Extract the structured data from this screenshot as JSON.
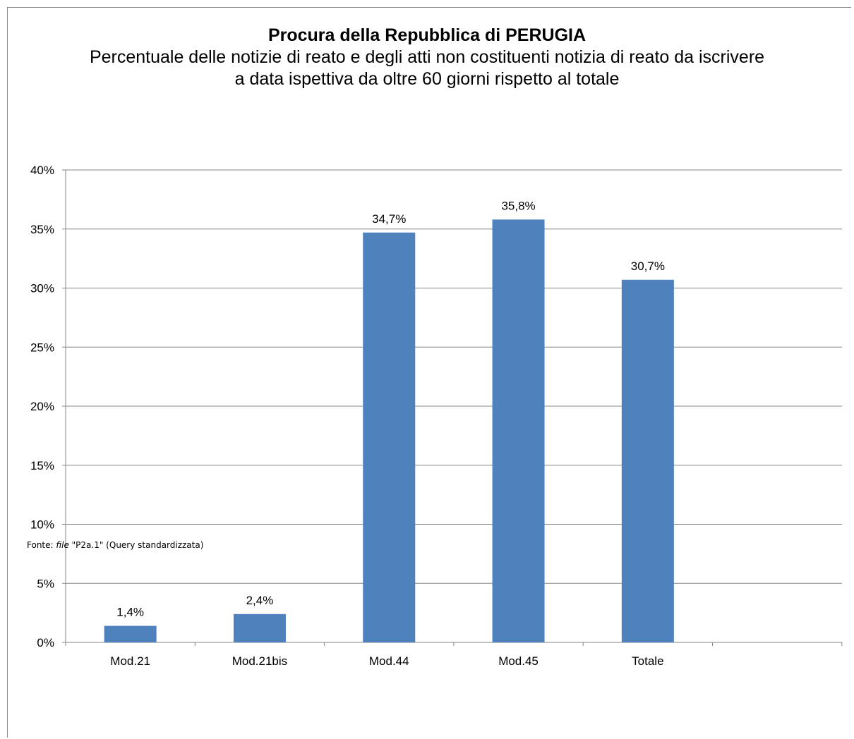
{
  "chart_data": {
    "type": "bar",
    "title": "Procura della Repubblica di PERUGIA",
    "subtitle": "Percentuale delle notizie di reato e degli atti non costituenti notizia di reato da iscrivere a data ispettiva da oltre 60 giorni rispetto al totale",
    "categories": [
      "Mod.21",
      "Mod.21bis",
      "Mod.44",
      "Mod.45",
      "Totale"
    ],
    "values": [
      1.4,
      2.4,
      34.7,
      35.8,
      30.7
    ],
    "data_labels": [
      "1,4%",
      "2,4%",
      "34,7%",
      "35,8%",
      "30,7%"
    ],
    "y_ticks": [
      0,
      5,
      10,
      15,
      20,
      25,
      30,
      35,
      40
    ],
    "y_tick_labels": [
      "0%",
      "5%",
      "10%",
      "15%",
      "20%",
      "25%",
      "30%",
      "35%",
      "40%"
    ],
    "ylim": [
      0,
      40
    ],
    "xlabel": "",
    "ylabel": "",
    "grid": true,
    "bar_color": "#4f81bd",
    "grid_color": "#868686"
  },
  "source": {
    "prefix": "Fonte: ",
    "file_word": "file",
    "rest": " \"P2a.1\" (Query standardizzata)"
  }
}
